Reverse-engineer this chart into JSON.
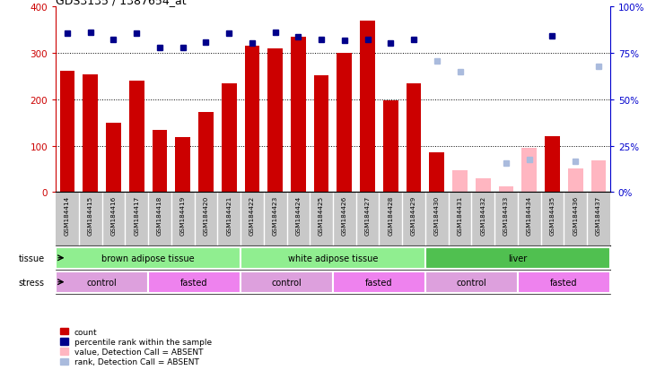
{
  "title": "GDS3135 / 1387654_at",
  "samples": [
    "GSM184414",
    "GSM184415",
    "GSM184416",
    "GSM184417",
    "GSM184418",
    "GSM184419",
    "GSM184420",
    "GSM184421",
    "GSM184422",
    "GSM184423",
    "GSM184424",
    "GSM184425",
    "GSM184426",
    "GSM184427",
    "GSM184428",
    "GSM184429",
    "GSM184430",
    "GSM184431",
    "GSM184432",
    "GSM184433",
    "GSM184434",
    "GSM184435",
    "GSM184436",
    "GSM184437"
  ],
  "counts": [
    262,
    254,
    149,
    240,
    133,
    118,
    173,
    234,
    315,
    310,
    335,
    252,
    301,
    370,
    198,
    235,
    86,
    null,
    null,
    null,
    null,
    120,
    null,
    null
  ],
  "counts_absent": [
    null,
    null,
    null,
    null,
    null,
    null,
    null,
    null,
    null,
    null,
    null,
    null,
    null,
    null,
    null,
    null,
    null,
    47,
    30,
    12,
    95,
    null,
    50,
    68
  ],
  "ranks_pct": [
    85.75,
    86.0,
    82.25,
    85.75,
    78.0,
    78.0,
    80.75,
    85.75,
    80.25,
    86.0,
    83.75,
    82.25,
    82.0,
    82.5,
    80.25,
    82.5,
    null,
    null,
    null,
    null,
    null,
    84.0,
    null,
    null
  ],
  "ranks_absent_pct": [
    null,
    null,
    null,
    null,
    null,
    null,
    null,
    null,
    null,
    null,
    null,
    null,
    null,
    null,
    null,
    null,
    70.75,
    64.75,
    null,
    15.5,
    17.75,
    null,
    16.75,
    68.0
  ],
  "ylim_left": [
    0,
    400
  ],
  "ylim_right": [
    0,
    100
  ],
  "yticks_left": [
    0,
    100,
    200,
    300,
    400
  ],
  "yticks_right": [
    0,
    25,
    50,
    75,
    100
  ],
  "tissue_groups": [
    {
      "label": "brown adipose tissue",
      "start": 0,
      "end": 8,
      "color": "#90EE90"
    },
    {
      "label": "white adipose tissue",
      "start": 8,
      "end": 16,
      "color": "#90EE90"
    },
    {
      "label": "liver",
      "start": 16,
      "end": 24,
      "color": "#50C050"
    }
  ],
  "stress_groups": [
    {
      "label": "control",
      "start": 0,
      "end": 4,
      "color": "#DDA0DD"
    },
    {
      "label": "fasted",
      "start": 4,
      "end": 8,
      "color": "#EE82EE"
    },
    {
      "label": "control",
      "start": 8,
      "end": 12,
      "color": "#DDA0DD"
    },
    {
      "label": "fasted",
      "start": 12,
      "end": 16,
      "color": "#EE82EE"
    },
    {
      "label": "control",
      "start": 16,
      "end": 20,
      "color": "#DDA0DD"
    },
    {
      "label": "fasted",
      "start": 20,
      "end": 24,
      "color": "#EE82EE"
    }
  ],
  "bar_color_present": "#CC0000",
  "bar_color_absent": "#FFB6C1",
  "dot_color_present": "#00008B",
  "dot_color_absent": "#AABBDD",
  "tick_bg_color": "#C8C8C8",
  "bar_width": 0.65,
  "axis_color_left": "#CC0000",
  "axis_color_right": "#0000CD"
}
